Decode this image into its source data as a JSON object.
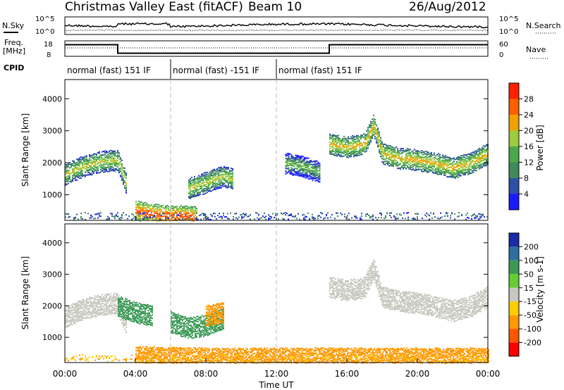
{
  "header": {
    "title": "Christmas Valley East (fitACF)",
    "beam": "Beam 10",
    "date": "26/Aug/2012"
  },
  "sky_panel": {
    "left_label": "N.Sky",
    "right_label": "N.Search",
    "left_ticks": [
      "10^5",
      "10^0"
    ],
    "right_ticks": [
      "10^5",
      "10^0"
    ]
  },
  "freq_panel": {
    "left_label_1": "Freq.",
    "left_label_2": "[MHz]",
    "right_label": "Nave",
    "left_ticks": [
      "18",
      "8"
    ],
    "right_ticks": [
      "60",
      "0"
    ],
    "freq_segments": [
      {
        "from_hour": 0,
        "to_hour": 3.0,
        "mhz": 15.5
      },
      {
        "from_hour": 3.0,
        "to_hour": 15.0,
        "mhz": 10.0
      },
      {
        "from_hour": 15.0,
        "to_hour": 24,
        "mhz": 15.5
      }
    ]
  },
  "cpid": {
    "label": "CPID",
    "segments": [
      {
        "text": "normal (fast) 151 IF",
        "from_hour": 0,
        "to_hour": 6.0
      },
      {
        "text": "normal (fast) -151 IF",
        "from_hour": 6.0,
        "to_hour": 12.0
      },
      {
        "text": "normal (fast) 151 IF",
        "from_hour": 12.0,
        "to_hour": 24
      }
    ]
  },
  "x_axis": {
    "title": "Time UT",
    "ticks": [
      "00:00",
      "04:00",
      "08:00",
      "12:00",
      "16:00",
      "20:00",
      "00:00"
    ]
  },
  "power_colorbar": {
    "label": "Power [dB]",
    "ticks": [
      "4",
      "8",
      "12",
      "16",
      "20",
      "24",
      "28"
    ],
    "colors": [
      "#1a1aff",
      "#2e4fa8",
      "#3f8a5a",
      "#4aa84a",
      "#9ccc3c",
      "#f0a000",
      "#ff6000",
      "#ff2000"
    ]
  },
  "velocity_colorbar": {
    "label": "Velocity [m s-1]",
    "ticks": [
      "200",
      "100",
      "50",
      "15",
      "-15",
      "-50",
      "-100",
      "-200"
    ],
    "colors": [
      "#1a2aa8",
      "#2f6fa0",
      "#3a9a55",
      "#66cc33",
      "#c8c8c0",
      "#ffcc00",
      "#ff9900",
      "#ff5500",
      "#ff0000"
    ]
  },
  "chart_data": [
    {
      "type": "heatmap",
      "title": "Power",
      "xlabel": "Time UT",
      "ylabel": "Slant Range [km]",
      "xlim_hours": [
        0,
        24
      ],
      "ylim_km": [
        200,
        4600
      ],
      "yticks": [
        "1000",
        "2000",
        "3000",
        "4000"
      ],
      "zlabel": "Power [dB]",
      "bands": [
        {
          "name": "",
          "hours": [
            0,
            1,
            2,
            3,
            3.5
          ],
          "range_km": [
            1650,
            1900,
            2050,
            2100,
            1300
          ],
          "power_db": 20
        },
        {
          "name": "",
          "hours": [
            4.0,
            5.0,
            6.0,
            7.0,
            7.5
          ],
          "range_km": [
            500,
            400,
            350,
            350,
            300
          ],
          "power_db": 28
        },
        {
          "name": "",
          "hours": [
            7.0,
            8.0,
            9.0,
            9.5
          ],
          "range_km": [
            1200,
            1400,
            1600,
            1500
          ],
          "power_db": 20
        },
        {
          "name": "",
          "hours": [
            12.5,
            13.5,
            14.5
          ],
          "range_km": [
            2000,
            1900,
            1700
          ],
          "power_db": 16
        },
        {
          "name": "",
          "hours": [
            15.0,
            16.0,
            17.0,
            17.5,
            18.0,
            19.0,
            20.0,
            21.0,
            22.0,
            23.0,
            24.0
          ],
          "range_km": [
            2600,
            2500,
            2600,
            3200,
            2300,
            2150,
            2100,
            2000,
            1850,
            2000,
            2300
          ],
          "power_db": 22
        }
      ]
    },
    {
      "type": "heatmap",
      "title": "Velocity",
      "xlabel": "Time UT",
      "ylabel": "Slant Range [km]",
      "xlim_hours": [
        0,
        24
      ],
      "ylim_km": [
        200,
        4600
      ],
      "yticks": [
        "1000",
        "2000",
        "3000",
        "4000"
      ],
      "zlabel": "Velocity [m s-1]",
      "bands": [
        {
          "name": "",
          "hours": [
            0,
            1,
            2,
            3,
            3.5
          ],
          "range_km": [
            1650,
            1900,
            2050,
            2100,
            1300
          ],
          "velocity_ms": 0
        },
        {
          "name": "",
          "hours": [
            3.0,
            4.0,
            5.0
          ],
          "range_km": [
            2000,
            1800,
            1700
          ],
          "velocity_ms": 60
        },
        {
          "name": "",
          "hours": [
            6.0,
            7.0,
            8.0,
            9.0
          ],
          "range_km": [
            1500,
            1300,
            1400,
            1600
          ],
          "velocity_ms": 60
        },
        {
          "name": "",
          "hours": [
            8.0,
            9.0
          ],
          "range_km": [
            1700,
            1800
          ],
          "velocity_ms": -80
        },
        {
          "name": "",
          "hours": [
            4.0,
            8.0,
            12.0,
            16.0,
            20.0,
            24.0
          ],
          "range_km": [
            400,
            350,
            350,
            350,
            350,
            350
          ],
          "velocity_ms": -60
        },
        {
          "name": "",
          "hours": [
            15.0,
            16.0,
            17.0,
            17.5,
            18.0,
            19.0,
            20.0,
            21.0,
            22.0,
            23.0,
            24.0
          ],
          "range_km": [
            2600,
            2500,
            2600,
            3200,
            2300,
            2150,
            2100,
            2000,
            1850,
            2000,
            2300
          ],
          "velocity_ms": 0
        }
      ]
    }
  ]
}
